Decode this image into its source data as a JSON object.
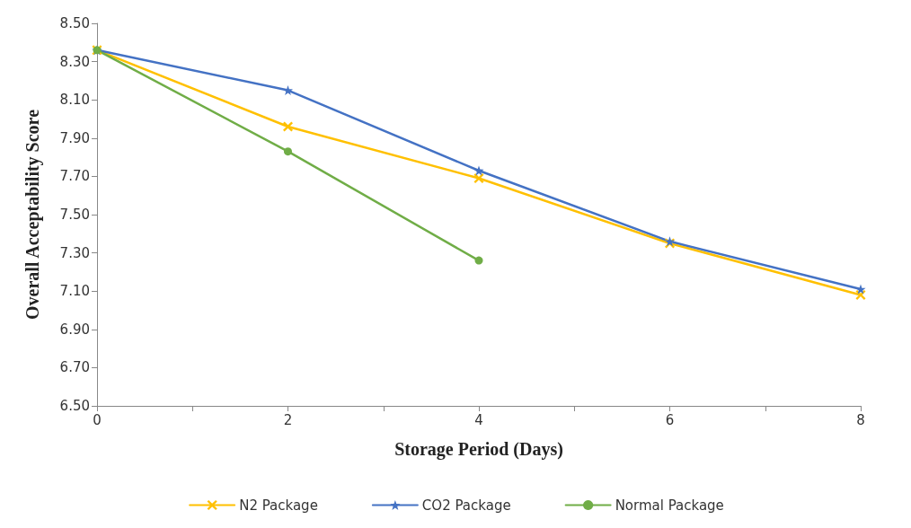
{
  "chart_data": {
    "type": "line",
    "xlabel": "Storage Period (Days)",
    "ylabel": "Overall Acceptability Score",
    "xlim": [
      0,
      8
    ],
    "xticks": [
      0,
      {
        "value": 1,
        "label": null
      },
      2,
      {
        "value": 3,
        "label": null
      },
      4,
      {
        "value": 5,
        "label": null
      },
      6,
      {
        "value": 7,
        "label": null
      },
      8
    ],
    "ylim": [
      6.5,
      8.5
    ],
    "yticks": [
      {
        "value": 6.5,
        "label": "6.50"
      },
      {
        "value": 6.7,
        "label": "6.70"
      },
      {
        "value": 6.9,
        "label": "6.90"
      },
      {
        "value": 7.1,
        "label": "7.10"
      },
      {
        "value": 7.3,
        "label": "7.30"
      },
      {
        "value": 7.5,
        "label": "7.50"
      },
      {
        "value": 7.7,
        "label": "7.70"
      },
      {
        "value": 7.9,
        "label": "7.90"
      },
      {
        "value": 8.1,
        "label": "8.10"
      },
      {
        "value": 8.3,
        "label": "8.30"
      },
      {
        "value": 8.5,
        "label": "8.50"
      }
    ],
    "grid": false,
    "legend": "bottom",
    "line_style": "solid",
    "series": [
      {
        "name": "N2 Package",
        "color": "#ffc000",
        "marker": "cross",
        "x": [
          0,
          2,
          4,
          6,
          8
        ],
        "values": [
          8.36,
          7.96,
          7.69,
          7.35,
          7.08
        ]
      },
      {
        "name": "CO2 Package",
        "color": "#4472c4",
        "marker": "star",
        "x": [
          0,
          2,
          4,
          6,
          8
        ],
        "values": [
          8.36,
          8.15,
          7.73,
          7.36,
          7.11
        ]
      },
      {
        "name": "Normal Package",
        "color": "#70ad47",
        "marker": "circle",
        "x": [
          0,
          2,
          4
        ],
        "values": [
          8.36,
          7.83,
          7.26
        ]
      }
    ]
  }
}
